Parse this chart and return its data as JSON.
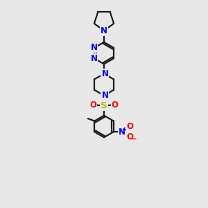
{
  "bg_color": "#e8e8e8",
  "bond_color": "#1a1a1a",
  "n_color": "#0000ff",
  "o_color": "#ff0000",
  "s_color": "#bbbb00",
  "line_width": 1.6,
  "font_size": 8.5,
  "xlim": [
    0,
    10
  ],
  "ylim": [
    0,
    17
  ]
}
